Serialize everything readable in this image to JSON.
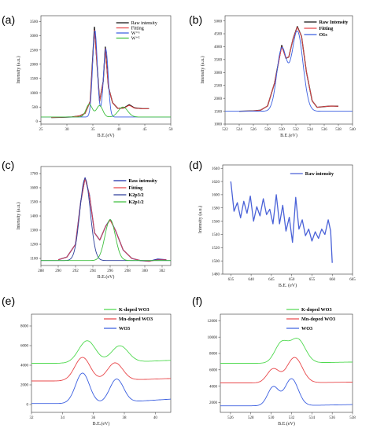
{
  "chart_data": [
    {
      "panel": "(a)",
      "type": "line",
      "xlabel": "B.E.(eV)",
      "ylabel": "Intensity (a.u.)",
      "xlim": [
        25,
        50
      ],
      "ylim": [
        -100,
        3700
      ],
      "xticks": [
        25,
        30,
        35,
        40,
        45,
        50
      ],
      "yticks": [
        0,
        500,
        1000,
        1500,
        2000,
        2500,
        3000,
        3500
      ],
      "legend": [
        "Raw intensity",
        "Fitting",
        "W⁺⁶",
        "W⁺⁵"
      ],
      "colors": {
        "Raw intensity": "#111111",
        "Fitting": "#e8474a",
        "W+6": "#3b5fe0",
        "W+5": "#3fbf3f"
      },
      "series": [
        {
          "name": "Raw intensity",
          "points": [
            [
              27,
              130
            ],
            [
              29,
              140
            ],
            [
              31,
              150
            ],
            [
              32.5,
              190
            ],
            [
              33.5,
              280
            ],
            [
              34.5,
              700
            ],
            [
              35.3,
              3300
            ],
            [
              35.8,
              2000
            ],
            [
              36.3,
              700
            ],
            [
              37,
              1400
            ],
            [
              37.4,
              2600
            ],
            [
              38,
              1200
            ],
            [
              38.8,
              650
            ],
            [
              39.8,
              450
            ],
            [
              41,
              470
            ],
            [
              42,
              580
            ],
            [
              43,
              470
            ],
            [
              44.5,
              440
            ],
            [
              45.8,
              440
            ]
          ]
        },
        {
          "name": "Fitting",
          "points": [
            [
              27,
              130
            ],
            [
              29,
              140
            ],
            [
              31,
              150
            ],
            [
              32.5,
              190
            ],
            [
              33.5,
              280
            ],
            [
              34.5,
              700
            ],
            [
              35.3,
              3200
            ],
            [
              35.8,
              2000
            ],
            [
              36.3,
              700
            ],
            [
              37,
              1400
            ],
            [
              37.4,
              2550
            ],
            [
              38,
              1200
            ],
            [
              38.8,
              650
            ],
            [
              39.8,
              450
            ],
            [
              41,
              460
            ],
            [
              42,
              560
            ],
            [
              43,
              460
            ],
            [
              44.5,
              440
            ],
            [
              45.8,
              440
            ]
          ]
        },
        {
          "name": "W+6",
          "peaks": [
            [
              35.4,
              3050,
              0.45
            ],
            [
              37.5,
              2400,
              0.45
            ]
          ],
          "baseline": 150
        },
        {
          "name": "W+5",
          "peaks": [
            [
              34.3,
              450,
              0.6
            ],
            [
              36.3,
              400,
              0.6
            ],
            [
              40.8,
              350,
              0.9
            ]
          ],
          "baseline": 150
        }
      ]
    },
    {
      "panel": "(b)",
      "type": "line",
      "xlabel": "B.E.(eV)",
      "ylabel": "Intensity (a.u.)",
      "xlim": [
        522,
        540
      ],
      "ylim": [
        1000,
        5200
      ],
      "xticks": [
        522,
        524,
        526,
        528,
        530,
        532,
        534,
        536,
        538,
        540
      ],
      "yticks": [
        1000,
        1500,
        2000,
        2500,
        3000,
        3500,
        4000,
        4500,
        5000
      ],
      "legend": [
        "Raw Intensity",
        "Fitting",
        "O1s"
      ],
      "colors": {
        "Raw Intensity": "#111111",
        "Fitting": "#e8474a",
        "O1s": "#3b5fe0"
      },
      "series": [
        {
          "name": "Raw Intensity",
          "points": [
            [
              524,
              1500
            ],
            [
              526,
              1510
            ],
            [
              527,
              1540
            ],
            [
              528,
              1700
            ],
            [
              529,
              2600
            ],
            [
              530,
              4050
            ],
            [
              530.6,
              3550
            ],
            [
              531,
              3600
            ],
            [
              531.6,
              4300
            ],
            [
              532.2,
              4780
            ],
            [
              532.8,
              4400
            ],
            [
              533.5,
              3000
            ],
            [
              534.3,
              1900
            ],
            [
              535,
              1650
            ],
            [
              536,
              1680
            ],
            [
              537,
              1700
            ],
            [
              538,
              1690
            ]
          ]
        },
        {
          "name": "Fitting",
          "points": [
            [
              524,
              1500
            ],
            [
              526,
              1510
            ],
            [
              527,
              1540
            ],
            [
              528,
              1700
            ],
            [
              529,
              2600
            ],
            [
              530,
              4000
            ],
            [
              530.6,
              3550
            ],
            [
              531,
              3600
            ],
            [
              531.6,
              4300
            ],
            [
              532.2,
              4760
            ],
            [
              532.8,
              4400
            ],
            [
              533.5,
              3000
            ],
            [
              534.3,
              1900
            ],
            [
              535,
              1650
            ],
            [
              536,
              1680
            ],
            [
              537,
              1700
            ],
            [
              538,
              1690
            ]
          ]
        },
        {
          "name": "O1s",
          "peaks": [
            [
              530.0,
              2400,
              0.7
            ],
            [
              532.2,
              3100,
              0.8
            ]
          ],
          "baseline": 1500
        }
      ]
    },
    {
      "panel": "(c)",
      "type": "line",
      "xlabel": "B.E.(eV)",
      "ylabel": "Intensity (a.u.)",
      "xlim": [
        288,
        303
      ],
      "ylim": [
        1050,
        1750
      ],
      "xticks": [
        288,
        290,
        292,
        294,
        296,
        298,
        300,
        302
      ],
      "yticks": [
        1100,
        1200,
        1300,
        1400,
        1500,
        1600,
        1700
      ],
      "legend": [
        "Raw intensity",
        "Fitting",
        "K2p3/2",
        "K2p1/2"
      ],
      "colors": {
        "Raw intensity": "#1a2aa8",
        "Fitting": "#e8474a",
        "K2p3/2": "#2d3f9a",
        "K2p1/2": "#3fbf3f"
      },
      "series": [
        {
          "name": "Raw intensity",
          "points": [
            [
              290,
              1090
            ],
            [
              291,
              1110
            ],
            [
              292,
              1200
            ],
            [
              292.6,
              1500
            ],
            [
              293.1,
              1670
            ],
            [
              293.6,
              1550
            ],
            [
              294.2,
              1280
            ],
            [
              294.8,
              1230
            ],
            [
              295.5,
              1330
            ],
            [
              296,
              1375
            ],
            [
              296.6,
              1300
            ],
            [
              297.5,
              1160
            ],
            [
              298.5,
              1100
            ],
            [
              299.5,
              1085
            ],
            [
              300.5,
              1080
            ],
            [
              301.5,
              1095
            ],
            [
              302.5,
              1090
            ]
          ]
        },
        {
          "name": "Fitting",
          "points": [
            [
              290,
              1090
            ],
            [
              291,
              1110
            ],
            [
              292,
              1200
            ],
            [
              292.6,
              1500
            ],
            [
              293.1,
              1665
            ],
            [
              293.6,
              1550
            ],
            [
              294.2,
              1280
            ],
            [
              294.8,
              1230
            ],
            [
              295.5,
              1330
            ],
            [
              296,
              1370
            ],
            [
              296.6,
              1300
            ],
            [
              297.5,
              1160
            ],
            [
              298.5,
              1100
            ],
            [
              299.5,
              1085
            ],
            [
              300.5,
              1080
            ],
            [
              301.5,
              1090
            ],
            [
              302.5,
              1090
            ]
          ]
        },
        {
          "name": "K2p3/2",
          "peaks": [
            [
              293.1,
              580,
              0.6
            ]
          ],
          "baseline": 1085
        },
        {
          "name": "K2p1/2",
          "peaks": [
            [
              296.0,
              290,
              0.6
            ]
          ],
          "baseline": 1085
        }
      ]
    },
    {
      "panel": "(d)",
      "type": "line",
      "xlabel": "B.E. (eV)",
      "ylabel": "Intensity (a.u.)",
      "xlim": [
        633,
        665
      ],
      "ylim": [
        1480,
        1645
      ],
      "xticks": [
        635,
        640,
        645,
        650,
        655,
        660,
        665
      ],
      "yticks": [
        1480,
        1500,
        1520,
        1540,
        1560,
        1580,
        1600,
        1620,
        1640
      ],
      "legend": [
        "Raw intensity"
      ],
      "colors": {
        "Raw intensity": "#4a62d8"
      },
      "series": [
        {
          "name": "Raw intensity",
          "points": [
            [
              635,
              1620
            ],
            [
              635.8,
              1575
            ],
            [
              636.6,
              1588
            ],
            [
              637.4,
              1565
            ],
            [
              638.2,
              1590
            ],
            [
              639,
              1572
            ],
            [
              639.8,
              1598
            ],
            [
              640.6,
              1560
            ],
            [
              641.4,
              1582
            ],
            [
              642.2,
              1568
            ],
            [
              643,
              1594
            ],
            [
              643.8,
              1570
            ],
            [
              644.6,
              1578
            ],
            [
              645.4,
              1556
            ],
            [
              646.2,
              1600
            ],
            [
              647,
              1556
            ],
            [
              647.8,
              1584
            ],
            [
              648.6,
              1545
            ],
            [
              649.4,
              1566
            ],
            [
              650.2,
              1528
            ],
            [
              651,
              1596
            ],
            [
              651.8,
              1548
            ],
            [
              652.6,
              1562
            ],
            [
              653.4,
              1538
            ],
            [
              654.2,
              1548
            ],
            [
              655,
              1530
            ],
            [
              655.8,
              1544
            ],
            [
              656.6,
              1534
            ],
            [
              657.4,
              1548
            ],
            [
              658.2,
              1540
            ],
            [
              659,
              1562
            ],
            [
              659.6,
              1545
            ],
            [
              660,
              1497
            ]
          ]
        }
      ]
    },
    {
      "panel": "(e)",
      "type": "line",
      "xlabel": "B.E.(eV)",
      "xlim": [
        32,
        41
      ],
      "ylim": [
        -800,
        9200
      ],
      "xticks": [
        32,
        34,
        36,
        38,
        40
      ],
      "yticks": [
        0,
        2000,
        4000,
        6000,
        8000
      ],
      "legend": [
        "K-doped WO3",
        "Mn-doped WO3",
        "WO3"
      ],
      "colors": {
        "K-doped WO3": "#4fd94f",
        "Mn-doped WO3": "#e8474a",
        "WO3": "#3b5fe0"
      },
      "series": [
        {
          "name": "K-doped WO3",
          "baseline": 4200,
          "peaks": [
            [
              35.6,
              2300,
              0.55
            ],
            [
              37.7,
              1700,
              0.55
            ]
          ],
          "tail": 300
        },
        {
          "name": "Mn-doped WO3",
          "baseline": 2400,
          "peaks": [
            [
              35.3,
              2400,
              0.5
            ],
            [
              37.4,
              1800,
              0.5
            ]
          ],
          "tail": 250
        },
        {
          "name": "WO3",
          "baseline": 100,
          "peaks": [
            [
              35.3,
              3100,
              0.45
            ],
            [
              37.5,
              2400,
              0.45
            ]
          ],
          "tail": 450
        }
      ]
    },
    {
      "panel": "(f)",
      "type": "line",
      "xlabel": "B.E.(eV)",
      "xlim": [
        525,
        538
      ],
      "ylim": [
        800,
        12800
      ],
      "xticks": [
        526,
        528,
        530,
        532,
        534,
        536,
        538
      ],
      "yticks": [
        2000,
        4000,
        6000,
        8000,
        10000,
        12000
      ],
      "legend": [
        "K-doped WO3",
        "Mn-doped WO3",
        "WO3"
      ],
      "colors": {
        "K-doped WO3": "#4fd94f",
        "Mn-doped WO3": "#e8474a",
        "WO3": "#3b5fe0"
      },
      "series": [
        {
          "name": "K-doped WO3",
          "baseline": 6800,
          "peaks": [
            [
              531.0,
              2400,
              0.65
            ],
            [
              532.6,
              2900,
              0.75
            ]
          ],
          "tail": 150
        },
        {
          "name": "Mn-doped WO3",
          "baseline": 4400,
          "peaks": [
            [
              530.2,
              1700,
              0.6
            ],
            [
              532.3,
              3100,
              0.75
            ]
          ],
          "tail": 100
        },
        {
          "name": "WO3",
          "baseline": 1600,
          "peaks": [
            [
              530.2,
              2300,
              0.55
            ],
            [
              532.0,
              3300,
              0.65
            ]
          ],
          "tail": 150
        }
      ]
    }
  ],
  "panel_labels": [
    "(a)",
    "(b)",
    "(c)",
    "(d)",
    "(e)",
    "(f)"
  ]
}
